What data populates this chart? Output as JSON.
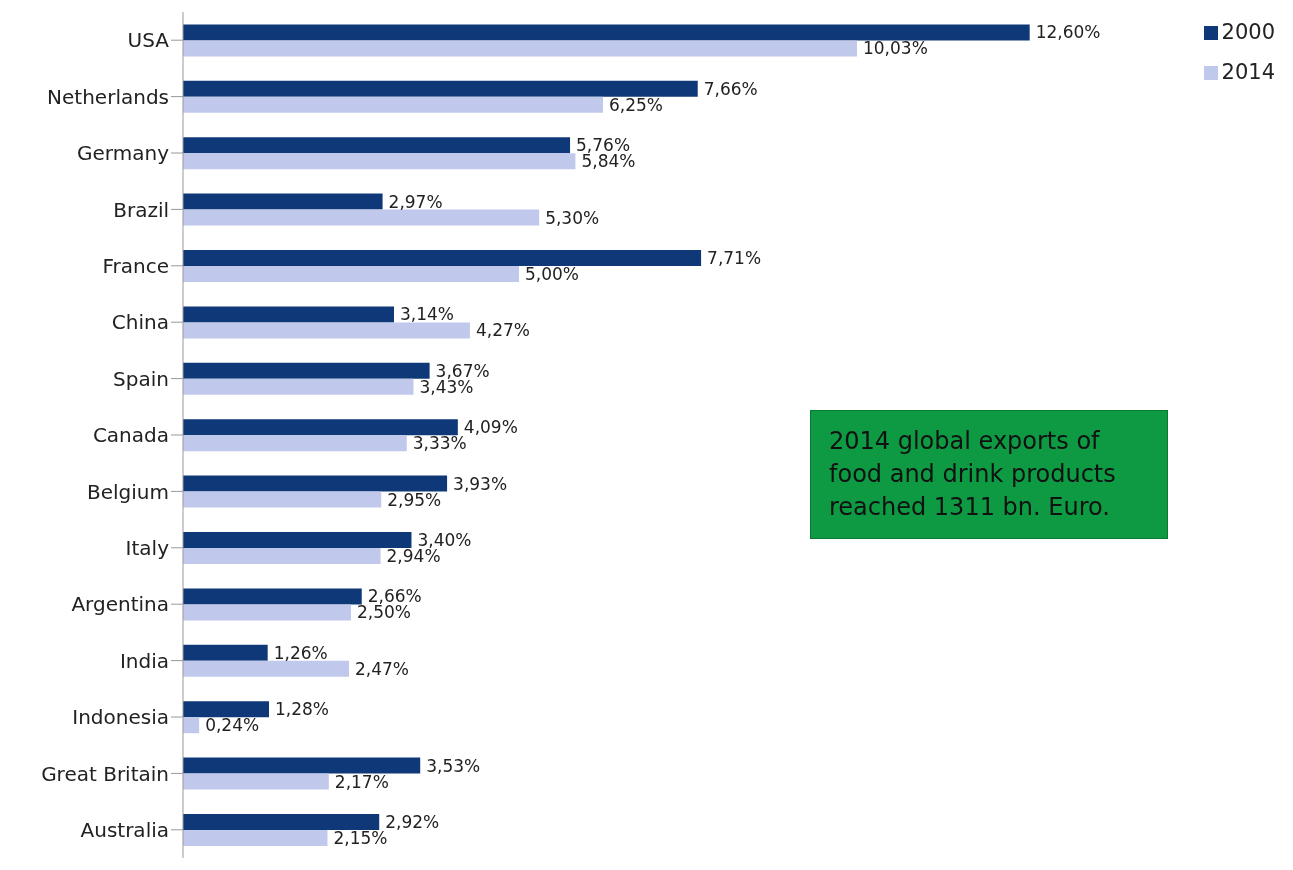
{
  "chart_data": {
    "type": "bar",
    "orientation": "horizontal",
    "categories": [
      "USA",
      "Netherlands",
      "Germany",
      "Brazil",
      "France",
      "China",
      "Spain",
      "Canada",
      "Belgium",
      "Italy",
      "Argentina",
      "India",
      "Indonesia",
      "Great Britain",
      "Australia"
    ],
    "series": [
      {
        "name": "2000",
        "color": "#0e3877",
        "values": [
          12.6,
          7.66,
          5.76,
          2.97,
          7.71,
          3.14,
          3.67,
          4.09,
          3.93,
          3.4,
          2.66,
          1.26,
          1.28,
          3.53,
          2.92
        ],
        "value_labels": [
          "12,60%",
          "7,66%",
          "5,76%",
          "2,97%",
          "7,71%",
          "3,14%",
          "3,67%",
          "4,09%",
          "3,93%",
          "3,40%",
          "2,66%",
          "1,26%",
          "1,28%",
          "3,53%",
          "2,92%"
        ]
      },
      {
        "name": "2014",
        "color": "#c0c8eb",
        "values": [
          10.03,
          6.25,
          5.84,
          5.3,
          5.0,
          4.27,
          3.43,
          3.33,
          2.95,
          2.94,
          2.5,
          2.47,
          0.24,
          2.17,
          2.15
        ],
        "value_labels": [
          "10,03%",
          "6,25%",
          "5,84%",
          "5,30%",
          "5,00%",
          "4,27%",
          "3,43%",
          "3,33%",
          "2,95%",
          "2,94%",
          "2,50%",
          "2,47%",
          "0,24%",
          "2,17%",
          "2,15%"
        ]
      }
    ],
    "legend": "top right",
    "annotations": [
      "2014 global exports of food and drink products reached 1311 bn. Euro."
    ]
  }
}
